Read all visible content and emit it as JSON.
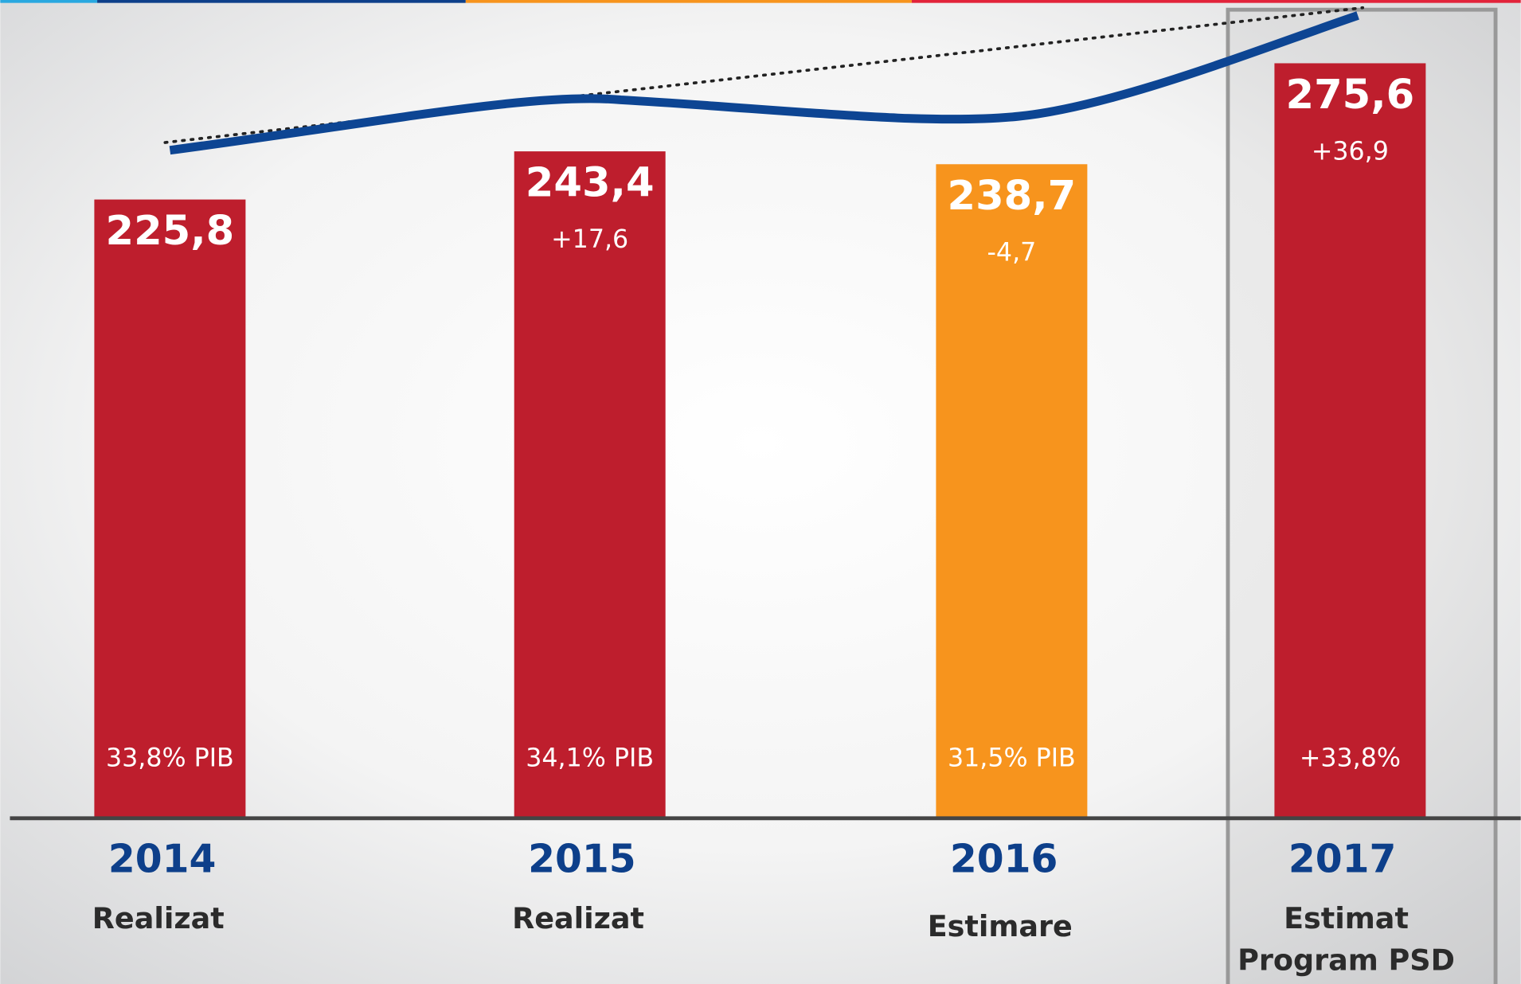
{
  "chart_data": {
    "type": "bar",
    "categories": [
      "2014",
      "2015",
      "2016",
      "2017"
    ],
    "values": [
      225.8,
      243.4,
      238.7,
      275.6
    ],
    "value_labels": [
      "225,8",
      "243,4",
      "238,7",
      "275,6"
    ],
    "colors": [
      "#be1e2d",
      "#be1e2d",
      "#f7941d",
      "#be1e2d"
    ],
    "changes": {
      "values": [
        null,
        17.6,
        -4.7,
        36.9
      ],
      "value_labels": [
        null,
        "+17,6",
        "-4,7",
        "+36,9"
      ]
    },
    "pib": {
      "values": [
        33.8,
        34.1,
        31.5,
        33.8
      ],
      "value_labels": [
        "33,8% PIB",
        "34,1% PIB",
        "31,5% PIB",
        "+33,8%"
      ]
    },
    "sublabels": [
      [
        "Realizat"
      ],
      [
        "Realizat"
      ],
      [
        "Estimare"
      ],
      [
        "Estimat",
        "Program PSD"
      ]
    ],
    "highlight": 3
  }
}
